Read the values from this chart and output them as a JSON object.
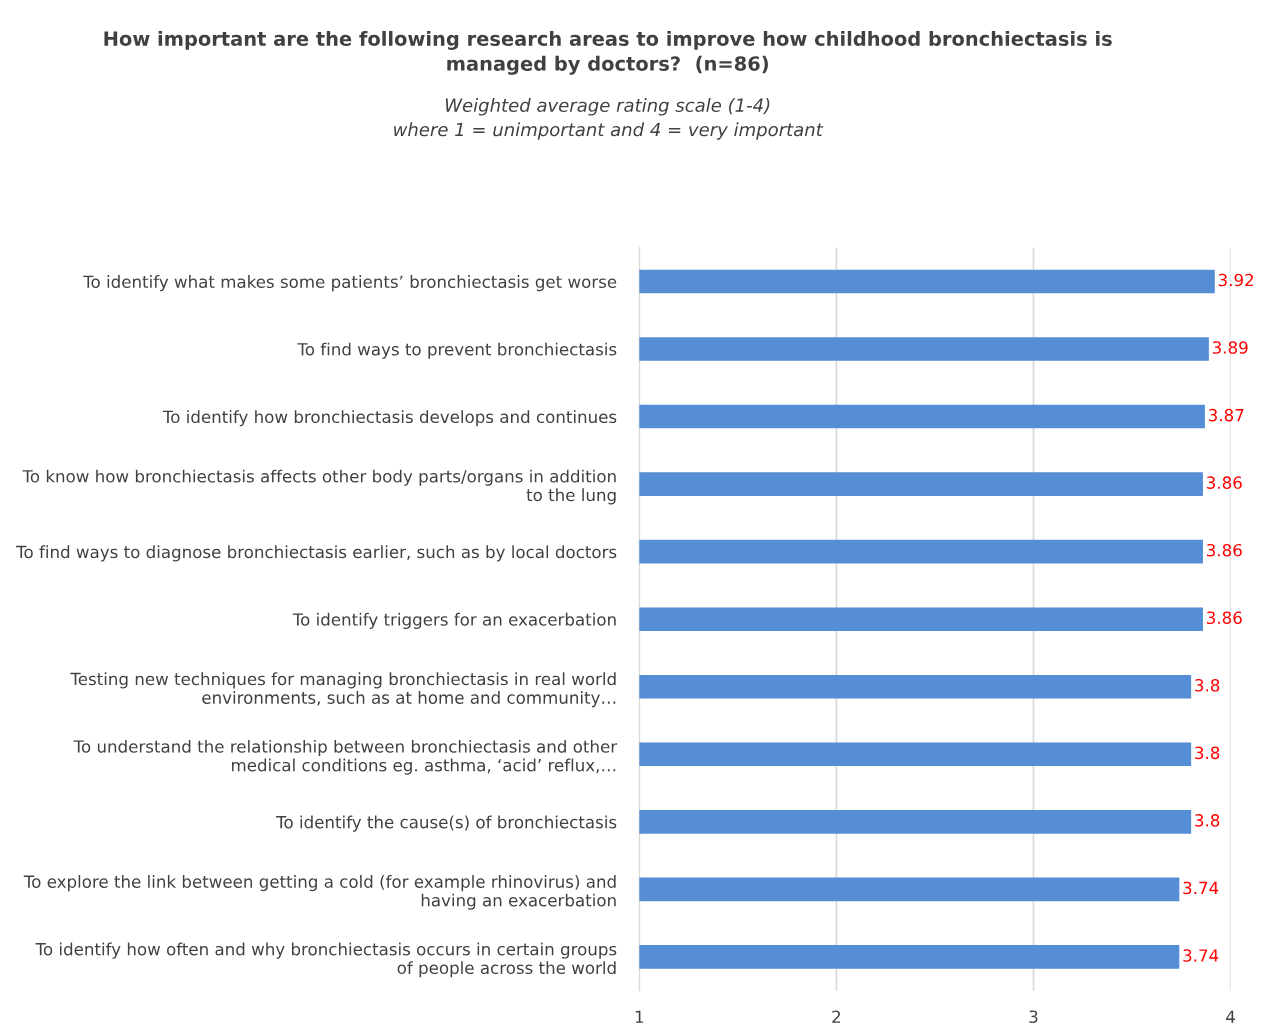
{
  "chart_data": {
    "type": "bar",
    "orientation": "horizontal",
    "title": "How important are the following research areas to improve how childhood bronchiectasis is managed by doctors?  (n=86)",
    "subtitle": "Weighted average rating scale (1-4)\nwhere 1 = unimportant and 4 = very important",
    "categories": [
      "To identify what makes some patients’ bronchiectasis get worse",
      "To find ways to prevent bronchiectasis",
      "To identify how bronchiectasis develops and continues",
      "To know how bronchiectasis affects other body parts/organs in addition to the lung",
      "To find ways to diagnose bronchiectasis earlier, such as by local doctors",
      "To identify triggers for an exacerbation",
      "Testing new techniques for managing bronchiectasis in real world environments, such as at home and community…",
      "To understand the relationship between bronchiectasis and other medical conditions eg. asthma, ‘acid’ reflux,…",
      "To identify the cause(s) of bronchiectasis",
      "To explore the link between getting a cold (for example rhinovirus) and having an exacerbation",
      "To identify how often and why bronchiectasis occurs in certain groups of people across the world"
    ],
    "values": [
      3.92,
      3.89,
      3.87,
      3.86,
      3.86,
      3.86,
      3.8,
      3.8,
      3.8,
      3.74,
      3.74
    ],
    "color": "#558ed5",
    "xlim": [
      1,
      4
    ],
    "xticks": [
      1,
      2,
      3,
      4
    ],
    "grid": "x",
    "data_labels": true
  }
}
